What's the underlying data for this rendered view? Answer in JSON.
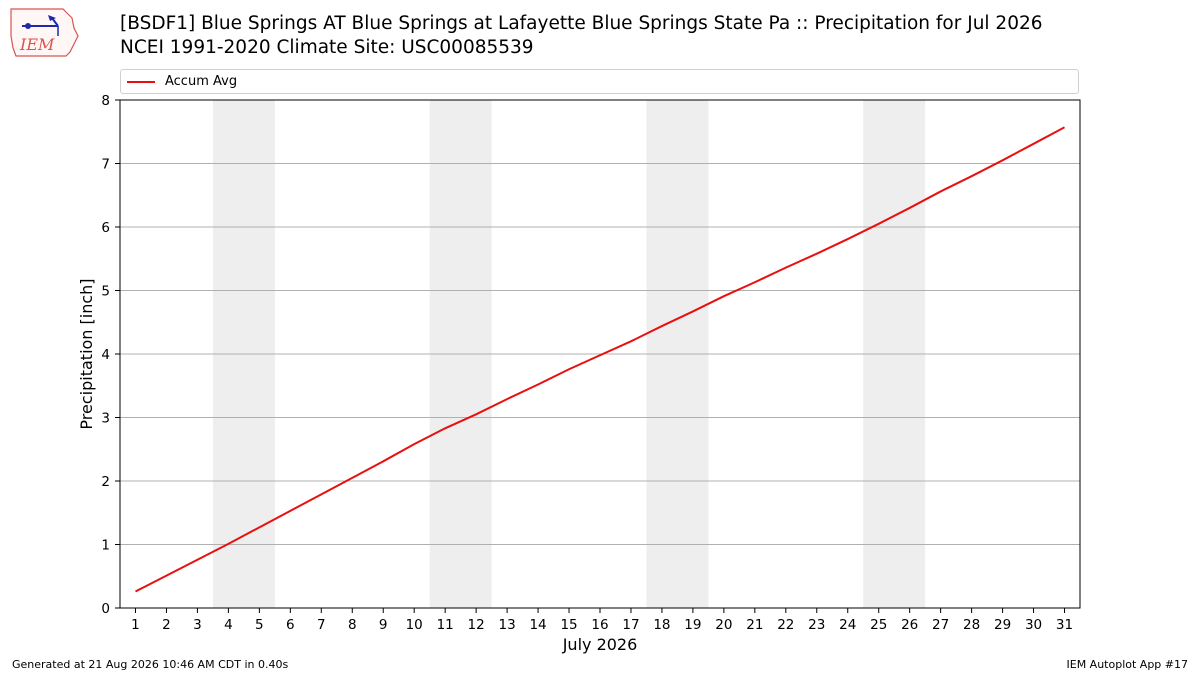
{
  "header": {
    "title_line1": "[BSDF1] Blue Springs  AT Blue Springs at Lafayette Blue Springs State Pa :: Precipitation for Jul 2026",
    "title_line2": "NCEI 1991-2020 Climate Site: USC00085539",
    "logo_text": "IEM"
  },
  "footer": {
    "generated": "Generated at 21 Aug 2026 10:46 AM CDT in 0.40s",
    "app": "IEM Autoplot App #17"
  },
  "chart_data": {
    "type": "line",
    "xlabel": "July 2026",
    "ylabel": "Precipitation [inch]",
    "xlim": [
      0.5,
      31.5
    ],
    "ylim": [
      0,
      8
    ],
    "yticks": [
      0,
      1,
      2,
      3,
      4,
      5,
      6,
      7,
      8
    ],
    "x": [
      1,
      2,
      3,
      4,
      5,
      6,
      7,
      8,
      9,
      10,
      11,
      12,
      13,
      14,
      15,
      16,
      17,
      18,
      19,
      20,
      21,
      22,
      23,
      24,
      25,
      26,
      27,
      28,
      29,
      30,
      31
    ],
    "series": [
      {
        "name": "Accum Avg",
        "color": "#e8100f",
        "values": [
          0.26,
          0.51,
          0.76,
          1.01,
          1.27,
          1.53,
          1.79,
          2.05,
          2.31,
          2.58,
          2.83,
          3.05,
          3.29,
          3.52,
          3.76,
          3.98,
          4.2,
          4.44,
          4.67,
          4.91,
          5.13,
          5.36,
          5.58,
          5.81,
          6.05,
          6.3,
          6.56,
          6.8,
          7.05,
          7.31,
          7.57
        ]
      }
    ],
    "weekend_bands": [
      [
        3.5,
        5.5
      ],
      [
        10.5,
        12.5
      ],
      [
        17.5,
        19.5
      ],
      [
        24.5,
        26.5
      ]
    ],
    "grid": "y",
    "legend_position": "top"
  }
}
